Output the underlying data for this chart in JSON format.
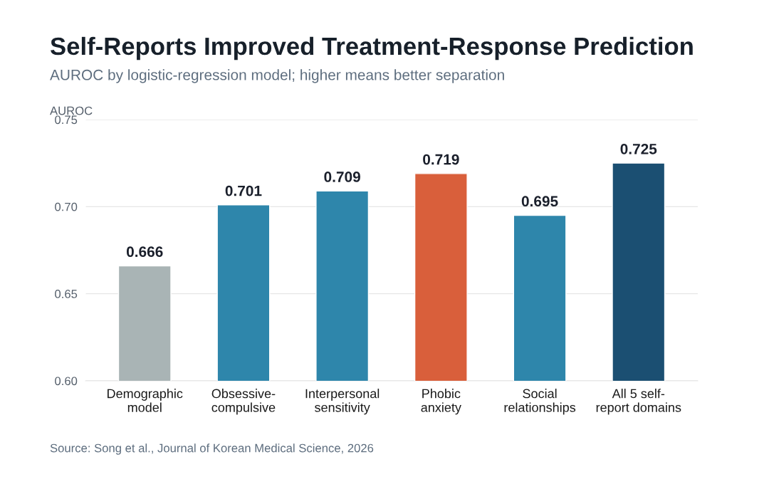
{
  "chart_data": {
    "type": "bar",
    "title": "Self-Reports Improved Treatment-Response Prediction",
    "subtitle": "AUROC by logistic-regression model; higher means better separation",
    "ylabel": "AUROC",
    "categories": [
      "Demographic\nmodel",
      "Obsessive-\ncompulsive",
      "Interpersonal\nsensitivity",
      "Phobic\nanxiety",
      "Social\nrelationships",
      "All 5 self-\nreport domains"
    ],
    "values": [
      0.666,
      0.701,
      0.709,
      0.719,
      0.695,
      0.725
    ],
    "colors": [
      "#a9b4b5",
      "#2e86ab",
      "#2e86ab",
      "#d95f3b",
      "#2e86ab",
      "#1b4f72"
    ],
    "ylim": [
      0.6,
      0.75
    ],
    "yticks": [
      {
        "value": 0.6,
        "label": "0.60"
      },
      {
        "value": 0.65,
        "label": "0.65"
      },
      {
        "value": 0.7,
        "label": "0.70"
      },
      {
        "value": 0.75,
        "label": "0.75"
      }
    ],
    "grid": "y",
    "data_labels": true,
    "legend": false,
    "annotations": [
      "Source: Song et al., Journal of Korean Medical Science, 2026"
    ]
  }
}
